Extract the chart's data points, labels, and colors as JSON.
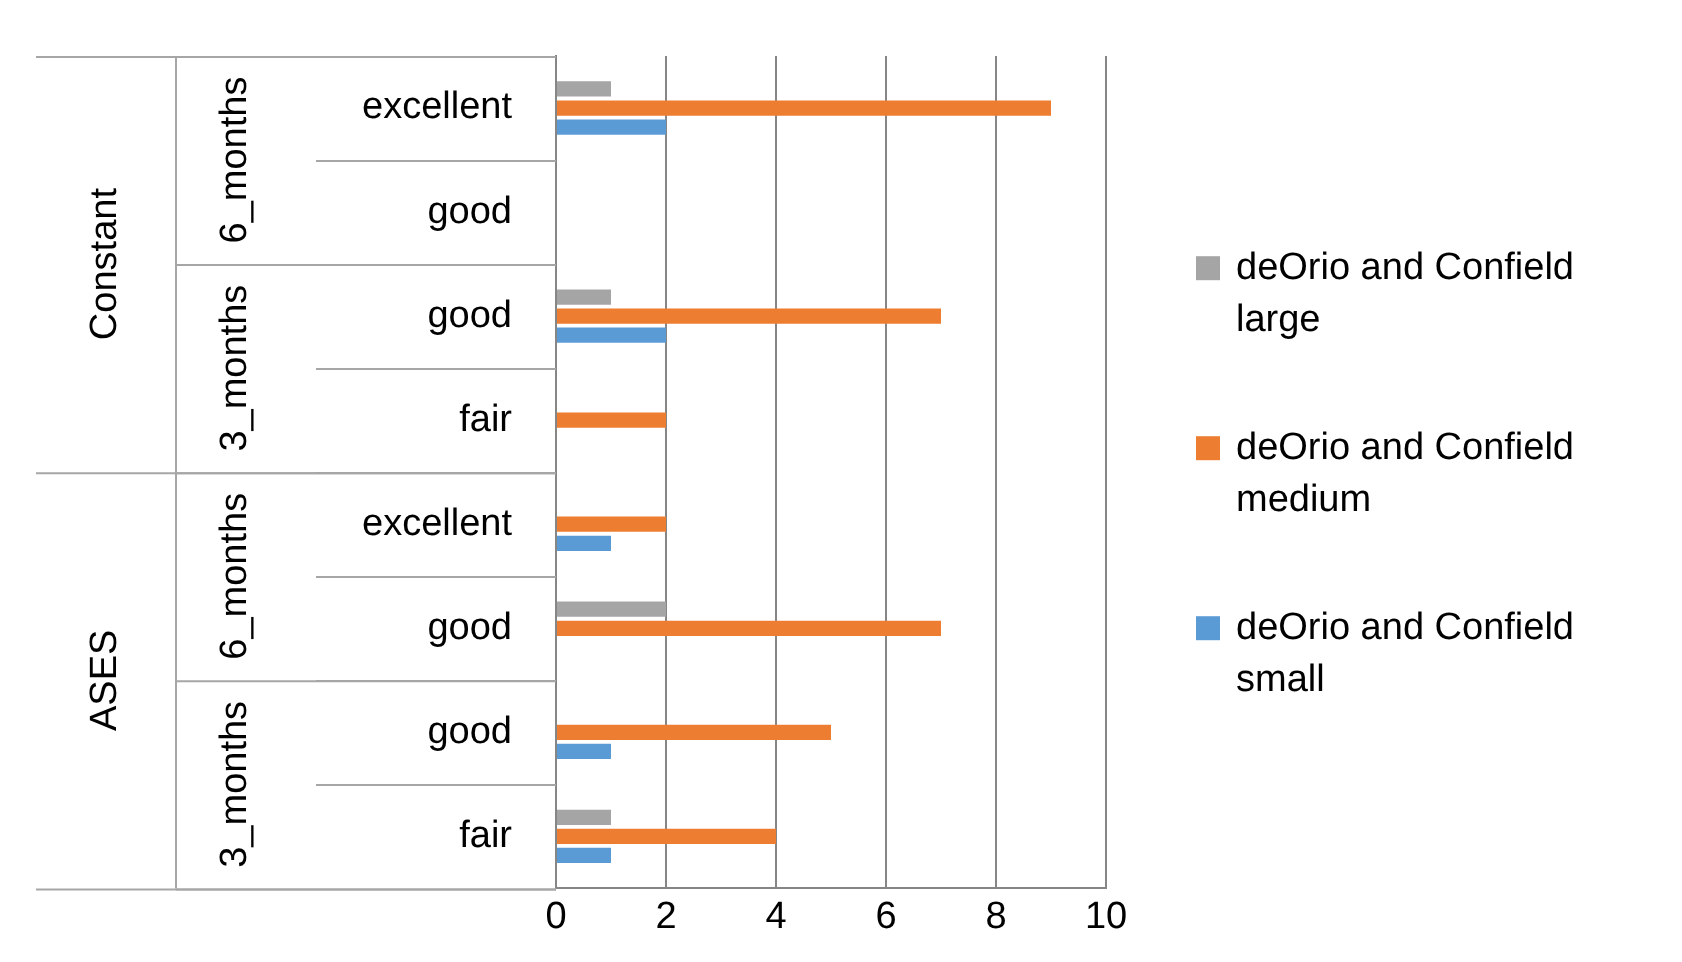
{
  "chart_data": {
    "type": "bar",
    "orientation": "horizontal",
    "categories": [
      "excellent",
      "good",
      "good",
      "fair",
      "excellent",
      "good",
      "good",
      "fair"
    ],
    "series": [
      {
        "name": "deOrio and Confield large",
        "color": "#a5a5a5",
        "values": [
          1,
          null,
          1,
          null,
          null,
          2,
          null,
          1
        ]
      },
      {
        "name": "deOrio and Confield medium",
        "color": "#ed7d31",
        "values": [
          9,
          null,
          7,
          2,
          2,
          7,
          5,
          4
        ]
      },
      {
        "name": "deOrio and Confield small",
        "color": "#5b9bd5",
        "values": [
          2,
          null,
          2,
          null,
          1,
          null,
          1,
          1
        ]
      }
    ],
    "annotations": [
      "Constant",
      "ASES",
      "6_months",
      "3_months",
      "6_months",
      "3_months"
    ],
    "xlim": [
      0,
      10
    ],
    "xticks": [
      0,
      2,
      4,
      6,
      8,
      10
    ],
    "grid": "x",
    "legend": "right"
  }
}
